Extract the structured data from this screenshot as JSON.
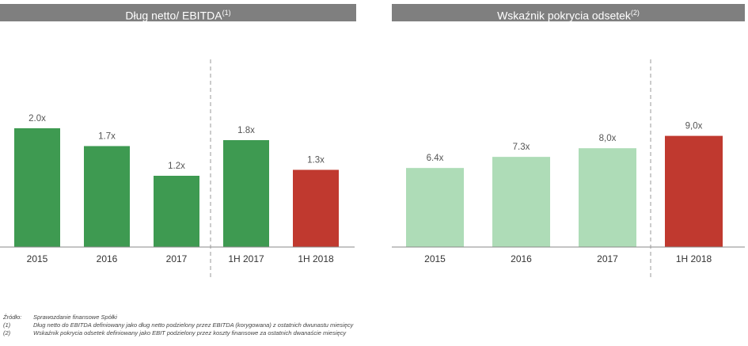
{
  "chart_data": [
    {
      "type": "bar",
      "title": "Dług netto/ EBITDA",
      "title_sup": "(1)",
      "categories": [
        "2015",
        "2016",
        "2017",
        "1H 2017",
        "1H 2018"
      ],
      "values": [
        2.0,
        1.7,
        1.2,
        1.8,
        1.3
      ],
      "value_labels": [
        "2.0x",
        "1.7x",
        "1.2x",
        "1.8x",
        "1.3x"
      ],
      "colors": [
        "#3e9a51",
        "#3e9a51",
        "#3e9a51",
        "#3e9a51",
        "#c0392f"
      ],
      "ylim": [
        0,
        2.6
      ],
      "divider_after_index": 2,
      "xlabel": "",
      "ylabel": ""
    },
    {
      "type": "bar",
      "title": "Wskaźnik pokrycia odsetek",
      "title_sup": "(2)",
      "categories": [
        "2015",
        "2016",
        "2017",
        "1H 2018"
      ],
      "values": [
        6.4,
        7.3,
        8.0,
        9.0
      ],
      "value_labels": [
        "6.4x",
        "7.3x",
        "8,0x",
        "9,0x"
      ],
      "colors": [
        "#aedcb7",
        "#aedcb7",
        "#aedcb7",
        "#c0392f"
      ],
      "ylim": [
        0,
        12.5
      ],
      "divider_after_index": 2,
      "xlabel": "",
      "ylabel": ""
    }
  ],
  "footnotes": [
    {
      "label": "Źródło:",
      "text": "Sprawozdanie finansowe Spółki"
    },
    {
      "label": "(1)",
      "text": "Dług netto do EBITDA definiowany jako dług netto podzielony przez EBITDA (korygowana) z ostatnich dwunastu miesięcy"
    },
    {
      "label": "(2)",
      "text": "Wskaźnik pokrycia odsetek definiowany jako EBIT podzielony przez koszty finansowe za ostatnich dwanaście miesięcy"
    }
  ]
}
